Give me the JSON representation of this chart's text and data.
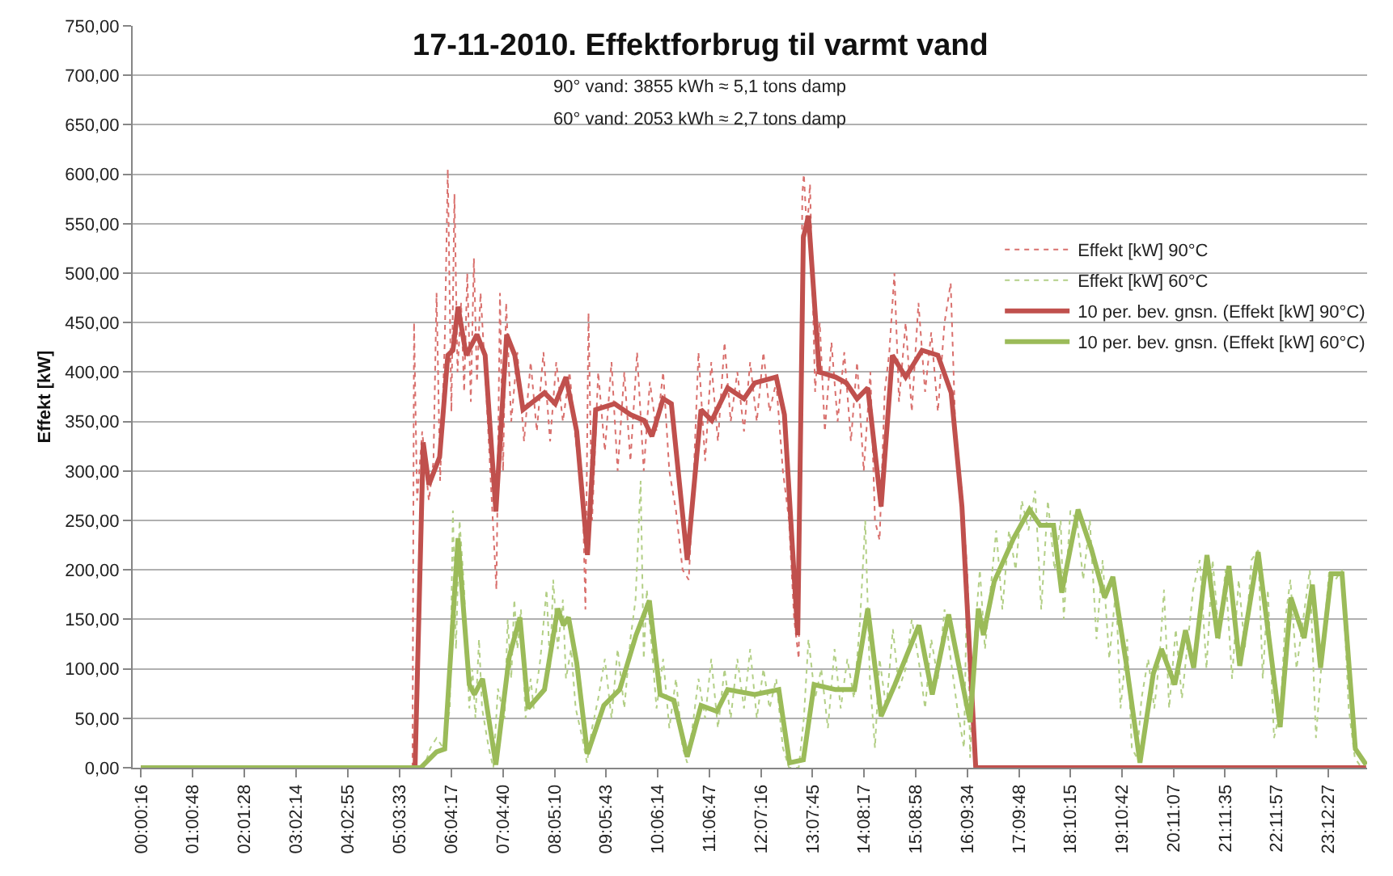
{
  "chart_data": {
    "type": "line",
    "title": "17-11-2010. Effektforbrug til varmt vand",
    "annotations": [
      "90° vand: 3855 kWh ≈ 5,1 tons damp",
      "60° vand: 2053 kWh ≈ 2,7 tons damp"
    ],
    "ylabel": "Effekt [kW]",
    "xlim": [
      -0.16,
      23.97
    ],
    "ylim": [
      0,
      750
    ],
    "xticks": [
      {
        "value": 0.00444,
        "label": "00:00:16"
      },
      {
        "value": 1.01333,
        "label": "01:00:48"
      },
      {
        "value": 2.02444,
        "label": "02:01:28"
      },
      {
        "value": 3.03722,
        "label": "03:02:14"
      },
      {
        "value": 4.04861,
        "label": "04:02:55"
      },
      {
        "value": 5.05917,
        "label": "05:03:33"
      },
      {
        "value": 6.07139,
        "label": "06:04:17"
      },
      {
        "value": 7.07778,
        "label": "07:04:40"
      },
      {
        "value": 8.08611,
        "label": "08:05:10"
      },
      {
        "value": 9.09528,
        "label": "09:05:43"
      },
      {
        "value": 10.10389,
        "label": "10:06:14"
      },
      {
        "value": 11.11306,
        "label": "11:06:47"
      },
      {
        "value": 12.12111,
        "label": "12:07:16"
      },
      {
        "value": 13.12917,
        "label": "13:07:45"
      },
      {
        "value": 14.13806,
        "label": "14:08:17"
      },
      {
        "value": 15.14944,
        "label": "15:08:58"
      },
      {
        "value": 16.15944,
        "label": "16:09:34"
      },
      {
        "value": 17.16333,
        "label": "17:09:48"
      },
      {
        "value": 18.17083,
        "label": "18:10:15"
      },
      {
        "value": 19.17833,
        "label": "19:10:42"
      },
      {
        "value": 20.18528,
        "label": "20:11:07"
      },
      {
        "value": 21.19306,
        "label": "21:11:35"
      },
      {
        "value": 22.19917,
        "label": "22:11:57"
      },
      {
        "value": 23.2075,
        "label": "23:12:27"
      }
    ],
    "yticks": [
      {
        "value": 0,
        "label": "0,00"
      },
      {
        "value": 50,
        "label": "50,00"
      },
      {
        "value": 100,
        "label": "100,00"
      },
      {
        "value": 150,
        "label": "150,00"
      },
      {
        "value": 200,
        "label": "200,00"
      },
      {
        "value": 250,
        "label": "250,00"
      },
      {
        "value": 300,
        "label": "300,00"
      },
      {
        "value": 350,
        "label": "350,00"
      },
      {
        "value": 400,
        "label": "400,00"
      },
      {
        "value": 450,
        "label": "450,00"
      },
      {
        "value": 500,
        "label": "500,00"
      },
      {
        "value": 550,
        "label": "550,00"
      },
      {
        "value": 600,
        "label": "600,00"
      },
      {
        "value": 650,
        "label": "650,00"
      },
      {
        "value": 700,
        "label": "700,00"
      },
      {
        "value": 750,
        "label": "750,00"
      }
    ],
    "grid": "y",
    "legend": "right",
    "marker": "none",
    "series": [
      {
        "name": "Effekt [kW] 90°C",
        "color": "#d9706d",
        "line_style": "dotted",
        "x": [
          0,
          5.31,
          5.34,
          5.4,
          5.5,
          5.63,
          5.72,
          5.78,
          5.85,
          5.94,
          6.0,
          6.07,
          6.13,
          6.19,
          6.26,
          6.32,
          6.38,
          6.45,
          6.51,
          6.57,
          6.64,
          6.73,
          6.83,
          6.89,
          6.95,
          7.02,
          7.08,
          7.14,
          7.24,
          7.36,
          7.49,
          7.62,
          7.74,
          7.87,
          8.0,
          8.12,
          8.25,
          8.38,
          8.5,
          8.63,
          8.69,
          8.75,
          8.82,
          8.94,
          9.07,
          9.2,
          9.32,
          9.45,
          9.57,
          9.7,
          9.83,
          9.95,
          10.08,
          10.21,
          10.33,
          10.46,
          10.59,
          10.71,
          10.81,
          10.9,
          11.03,
          11.15,
          11.28,
          11.41,
          11.53,
          11.66,
          11.79,
          11.91,
          12.04,
          12.17,
          12.29,
          12.42,
          12.55,
          12.67,
          12.77,
          12.86,
          12.93,
          12.96,
          13.02,
          13.08,
          13.18,
          13.27,
          13.37,
          13.5,
          13.62,
          13.75,
          13.88,
          14.0,
          14.13,
          14.26,
          14.35,
          14.44,
          14.54,
          14.63,
          14.73,
          14.82,
          14.95,
          15.07,
          15.2,
          15.33,
          15.45,
          15.58,
          15.71,
          15.83,
          15.93,
          16.05,
          16.15,
          16.27,
          16.34,
          23.95
        ],
        "values": [
          0,
          0,
          450,
          270,
          340,
          270,
          310,
          480,
          290,
          430,
          605,
          360,
          580,
          400,
          470,
          380,
          500,
          370,
          515,
          390,
          480,
          400,
          300,
          240,
          180,
          480,
          300,
          470,
          350,
          420,
          330,
          410,
          340,
          420,
          330,
          410,
          350,
          400,
          330,
          290,
          160,
          460,
          250,
          400,
          320,
          410,
          300,
          400,
          310,
          420,
          300,
          390,
          340,
          400,
          300,
          260,
          200,
          190,
          300,
          420,
          310,
          410,
          330,
          430,
          350,
          400,
          340,
          410,
          350,
          420,
          360,
          390,
          300,
          250,
          150,
          110,
          580,
          600,
          540,
          590,
          380,
          450,
          340,
          430,
          350,
          420,
          330,
          410,
          300,
          400,
          250,
          230,
          380,
          420,
          500,
          370,
          450,
          360,
          470,
          380,
          440,
          360,
          450,
          490,
          330,
          280,
          200,
          40,
          0,
          0
        ]
      },
      {
        "name": "Effekt [kW] 60°C",
        "color": "#b3cf86",
        "line_style": "dotted",
        "x": [
          0,
          5.31,
          5.53,
          5.66,
          5.78,
          5.91,
          6.04,
          6.1,
          6.16,
          6.23,
          6.32,
          6.42,
          6.48,
          6.54,
          6.61,
          6.67,
          6.8,
          6.89,
          6.98,
          7.11,
          7.17,
          7.24,
          7.3,
          7.36,
          7.43,
          7.52,
          7.62,
          7.68,
          7.81,
          7.93,
          8.0,
          8.06,
          8.15,
          8.25,
          8.31,
          8.41,
          8.5,
          8.63,
          8.72,
          8.82,
          8.94,
          9.07,
          9.2,
          9.32,
          9.45,
          9.57,
          9.67,
          9.77,
          9.83,
          9.89,
          9.99,
          10.08,
          10.21,
          10.33,
          10.46,
          10.59,
          10.68,
          10.78,
          10.9,
          11.03,
          11.15,
          11.28,
          11.41,
          11.53,
          11.66,
          11.79,
          11.91,
          12.04,
          12.17,
          12.29,
          12.42,
          12.55,
          12.67,
          12.86,
          12.96,
          13.05,
          13.18,
          13.3,
          13.43,
          13.56,
          13.68,
          13.81,
          13.94,
          14.06,
          14.16,
          14.25,
          14.35,
          14.44,
          14.57,
          14.7,
          14.82,
          14.95,
          15.07,
          15.2,
          15.33,
          15.45,
          15.58,
          15.71,
          15.83,
          15.96,
          16.09,
          16.15,
          16.21,
          16.31,
          16.4,
          16.5,
          16.59,
          16.72,
          16.84,
          16.97,
          17.1,
          17.22,
          17.35,
          17.48,
          17.6,
          17.73,
          17.86,
          17.98,
          18.04,
          18.17,
          18.3,
          18.42,
          18.55,
          18.68,
          18.8,
          18.93,
          19.06,
          19.15,
          19.28,
          19.37,
          19.47,
          19.56,
          19.69,
          19.81,
          19.91,
          20.0,
          20.1,
          20.23,
          20.35,
          20.45,
          20.57,
          20.7,
          20.83,
          20.95,
          21.08,
          21.2,
          21.33,
          21.46,
          21.58,
          21.71,
          21.84,
          21.93,
          22.03,
          22.15,
          22.28,
          22.37,
          22.47,
          22.59,
          22.72,
          22.85,
          22.97,
          23.1,
          23.23,
          23.35,
          23.48,
          23.61,
          23.73,
          23.86,
          23.95
        ],
        "values": [
          0,
          0,
          0,
          20,
          30,
          20,
          60,
          260,
          120,
          250,
          180,
          60,
          100,
          50,
          130,
          60,
          20,
          0,
          80,
          50,
          150,
          90,
          170,
          120,
          160,
          50,
          90,
          60,
          110,
          180,
          100,
          190,
          120,
          170,
          90,
          120,
          60,
          30,
          5,
          40,
          70,
          110,
          50,
          120,
          60,
          130,
          170,
          290,
          110,
          180,
          120,
          60,
          110,
          40,
          90,
          20,
          5,
          40,
          90,
          50,
          110,
          40,
          100,
          50,
          110,
          60,
          120,
          50,
          100,
          60,
          90,
          20,
          0,
          0,
          50,
          130,
          70,
          100,
          40,
          120,
          60,
          110,
          70,
          150,
          250,
          90,
          20,
          110,
          60,
          140,
          80,
          100,
          150,
          110,
          60,
          130,
          90,
          160,
          110,
          60,
          20,
          190,
          10,
          140,
          200,
          120,
          170,
          240,
          160,
          240,
          200,
          270,
          240,
          280,
          160,
          270,
          200,
          250,
          150,
          260,
          250,
          190,
          250,
          130,
          210,
          110,
          180,
          60,
          130,
          20,
          10,
          70,
          110,
          60,
          110,
          180,
          60,
          140,
          70,
          120,
          180,
          210,
          100,
          210,
          130,
          200,
          90,
          190,
          120,
          210,
          220,
          90,
          180,
          30,
          60,
          150,
          190,
          100,
          150,
          200,
          30,
          120,
          200,
          190,
          200,
          60,
          10,
          0,
          0
        ]
      },
      {
        "name": "10 per. bev. gnsn. (Effekt [kW] 90°C)",
        "color": "#c0504d",
        "line_style": "solid",
        "x": [
          0,
          5.36,
          5.52,
          5.63,
          5.84,
          6.0,
          6.1,
          6.2,
          6.36,
          6.57,
          6.73,
          6.94,
          7.15,
          7.31,
          7.47,
          7.89,
          8.1,
          8.31,
          8.52,
          8.73,
          8.89,
          9.26,
          9.57,
          9.84,
          9.99,
          10.21,
          10.37,
          10.68,
          10.95,
          11.16,
          11.47,
          11.79,
          12.0,
          12.42,
          12.58,
          12.84,
          12.95,
          13.05,
          13.26,
          13.58,
          13.79,
          14.0,
          14.21,
          14.47,
          14.69,
          14.95,
          15.27,
          15.58,
          15.84,
          16.05,
          16.32,
          23.95
        ],
        "values": [
          0,
          0,
          329,
          286,
          314,
          417,
          422,
          466,
          417,
          438,
          417,
          259,
          438,
          417,
          362,
          379,
          368,
          395,
          340,
          215,
          362,
          368,
          357,
          351,
          335,
          373,
          368,
          210,
          362,
          351,
          384,
          373,
          389,
          395,
          357,
          134,
          536,
          558,
          400,
          395,
          389,
          373,
          384,
          264,
          417,
          395,
          422,
          417,
          379,
          264,
          0,
          0
        ]
      },
      {
        "name": "10 per. bev. gnsn. (Effekt [kW] 60°C)",
        "color": "#9bbb59",
        "line_style": "solid",
        "x": [
          0,
          5.47,
          5.78,
          5.94,
          6.2,
          6.42,
          6.52,
          6.68,
          6.94,
          7.2,
          7.41,
          7.57,
          7.89,
          8.15,
          8.26,
          8.36,
          8.52,
          8.73,
          9.05,
          9.36,
          9.68,
          9.94,
          10.15,
          10.42,
          10.68,
          10.95,
          11.26,
          11.47,
          12.0,
          12.47,
          12.68,
          12.95,
          13.16,
          13.58,
          13.95,
          14.21,
          14.47,
          14.74,
          15.21,
          15.47,
          15.79,
          16.21,
          16.37,
          16.47,
          16.68,
          17.06,
          17.37,
          17.58,
          17.84,
          18.0,
          18.32,
          18.58,
          18.84,
          19.0,
          19.26,
          19.53,
          19.79,
          19.95,
          20.21,
          20.42,
          20.58,
          20.84,
          21.05,
          21.27,
          21.48,
          21.84,
          22.27,
          22.48,
          22.74,
          22.9,
          23.06,
          23.27,
          23.48,
          23.74,
          23.95
        ],
        "values": [
          0,
          0,
          16,
          19,
          232,
          84,
          74,
          90,
          3,
          112,
          152,
          60,
          79,
          161,
          144,
          152,
          106,
          14,
          63,
          79,
          134,
          169,
          74,
          68,
          11,
          63,
          57,
          79,
          74,
          79,
          5,
          8,
          84,
          79,
          79,
          161,
          52,
          84,
          144,
          74,
          155,
          46,
          161,
          134,
          188,
          232,
          261,
          245,
          245,
          177,
          261,
          221,
          172,
          193,
          106,
          5,
          95,
          120,
          84,
          139,
          101,
          215,
          131,
          204,
          103,
          218,
          41,
          172,
          131,
          185,
          101,
          196,
          196,
          19,
          3
        ]
      }
    ]
  }
}
